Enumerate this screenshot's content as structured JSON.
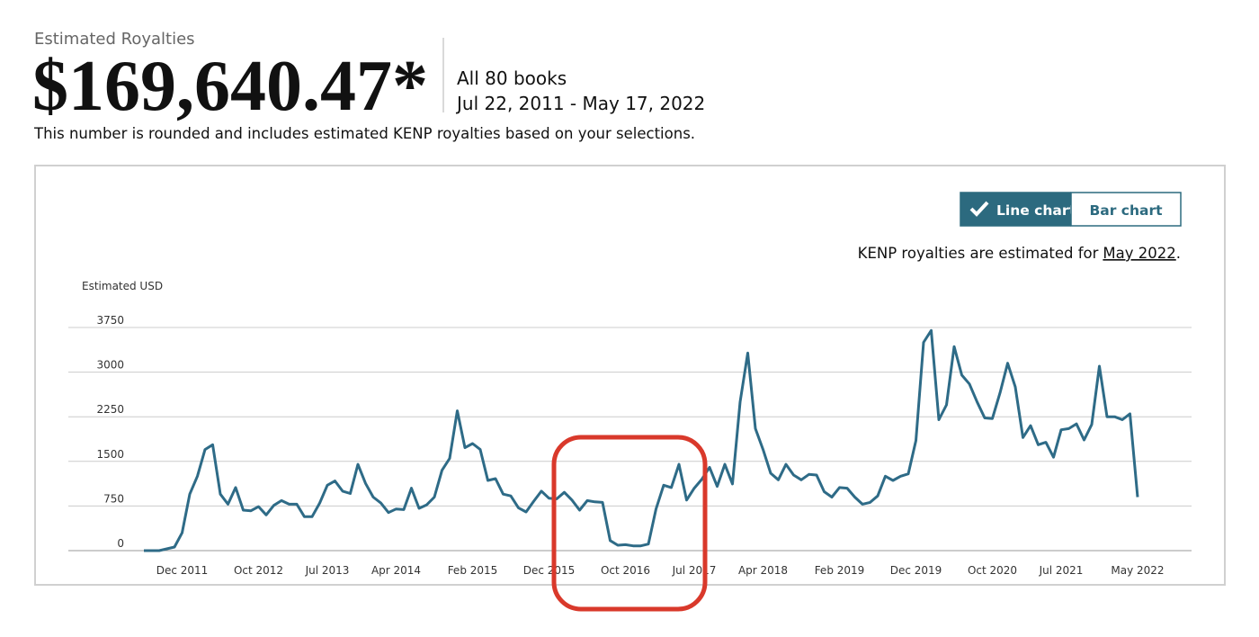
{
  "header": {
    "label": "Estimated Royalties",
    "amount": "$169,640.47*",
    "scope": "All 80 books",
    "date_range": "Jul 22, 2011 - May 17, 2022",
    "note": "This number is rounded and includes estimated KENP royalties based on your selections."
  },
  "toggle": {
    "options": [
      "Line chart",
      "Bar chart"
    ],
    "selected": 0
  },
  "kenp_note": {
    "text": "KENP royalties are estimated for",
    "link": "May 2022",
    "end": "."
  },
  "chart_data": {
    "type": "line",
    "y_label": "Estimated USD",
    "color": "#2e6b87",
    "categories": [
      null,
      null,
      null,
      null,
      null,
      "Dec 2011",
      null,
      null,
      null,
      null,
      null,
      null,
      null,
      null,
      null,
      "Oct 2012",
      null,
      null,
      null,
      null,
      null,
      null,
      null,
      null,
      "Jul 2013",
      null,
      null,
      null,
      null,
      null,
      null,
      null,
      null,
      "Apr 2014",
      null,
      null,
      null,
      null,
      null,
      null,
      null,
      null,
      null,
      "Feb 2015",
      null,
      null,
      null,
      null,
      null,
      null,
      null,
      null,
      null,
      "Dec 2015",
      null,
      null,
      null,
      null,
      null,
      null,
      null,
      null,
      null,
      "Oct 2016",
      null,
      null,
      null,
      null,
      null,
      null,
      null,
      null,
      "Jul 2017",
      null,
      null,
      null,
      null,
      null,
      null,
      null,
      null,
      "Apr 2018",
      null,
      null,
      null,
      null,
      null,
      null,
      null,
      null,
      null,
      "Feb 2019",
      null,
      null,
      null,
      null,
      null,
      null,
      null,
      null,
      null,
      "Dec 2019",
      null,
      null,
      null,
      null,
      null,
      null,
      null,
      null,
      null,
      "Oct 2020",
      null,
      null,
      null,
      null,
      null,
      null,
      null,
      null,
      "Jul 2021",
      null,
      null,
      null,
      null,
      null,
      null,
      null,
      null,
      null,
      "May 2022"
    ],
    "values": [
      0,
      0,
      0,
      30,
      60,
      300,
      950,
      1250,
      1700,
      1780,
      950,
      780,
      1060,
      680,
      670,
      740,
      600,
      760,
      840,
      780,
      780,
      570,
      570,
      800,
      1100,
      1170,
      1000,
      960,
      1450,
      1130,
      900,
      800,
      640,
      700,
      690,
      1050,
      710,
      770,
      900,
      1350,
      1550,
      2350,
      1730,
      1800,
      1700,
      1180,
      1210,
      950,
      920,
      720,
      650,
      830,
      1000,
      880,
      870,
      980,
      850,
      680,
      840,
      820,
      810,
      170,
      90,
      100,
      80,
      80,
      110,
      700,
      1100,
      1060,
      1450,
      850,
      1050,
      1200,
      1400,
      1080,
      1450,
      1120,
      2500,
      3320,
      2050,
      1700,
      1300,
      1190,
      1450,
      1270,
      1190,
      1280,
      1270,
      990,
      900,
      1060,
      1050,
      900,
      780,
      810,
      920,
      1250,
      1180,
      1250,
      1290,
      1850,
      3500,
      3700,
      2200,
      2450,
      3430,
      2950,
      2800,
      2500,
      2230,
      2220,
      2650,
      3150,
      2750,
      1900,
      2100,
      1780,
      1820,
      1570,
      2030,
      2050,
      2130,
      1860,
      2120,
      3100,
      2250,
      2250,
      2200,
      2300,
      900
    ],
    "ylim": [
      0,
      3750
    ],
    "yticks": [
      0,
      750,
      1500,
      2250,
      3000,
      3750
    ],
    "grid": true
  }
}
